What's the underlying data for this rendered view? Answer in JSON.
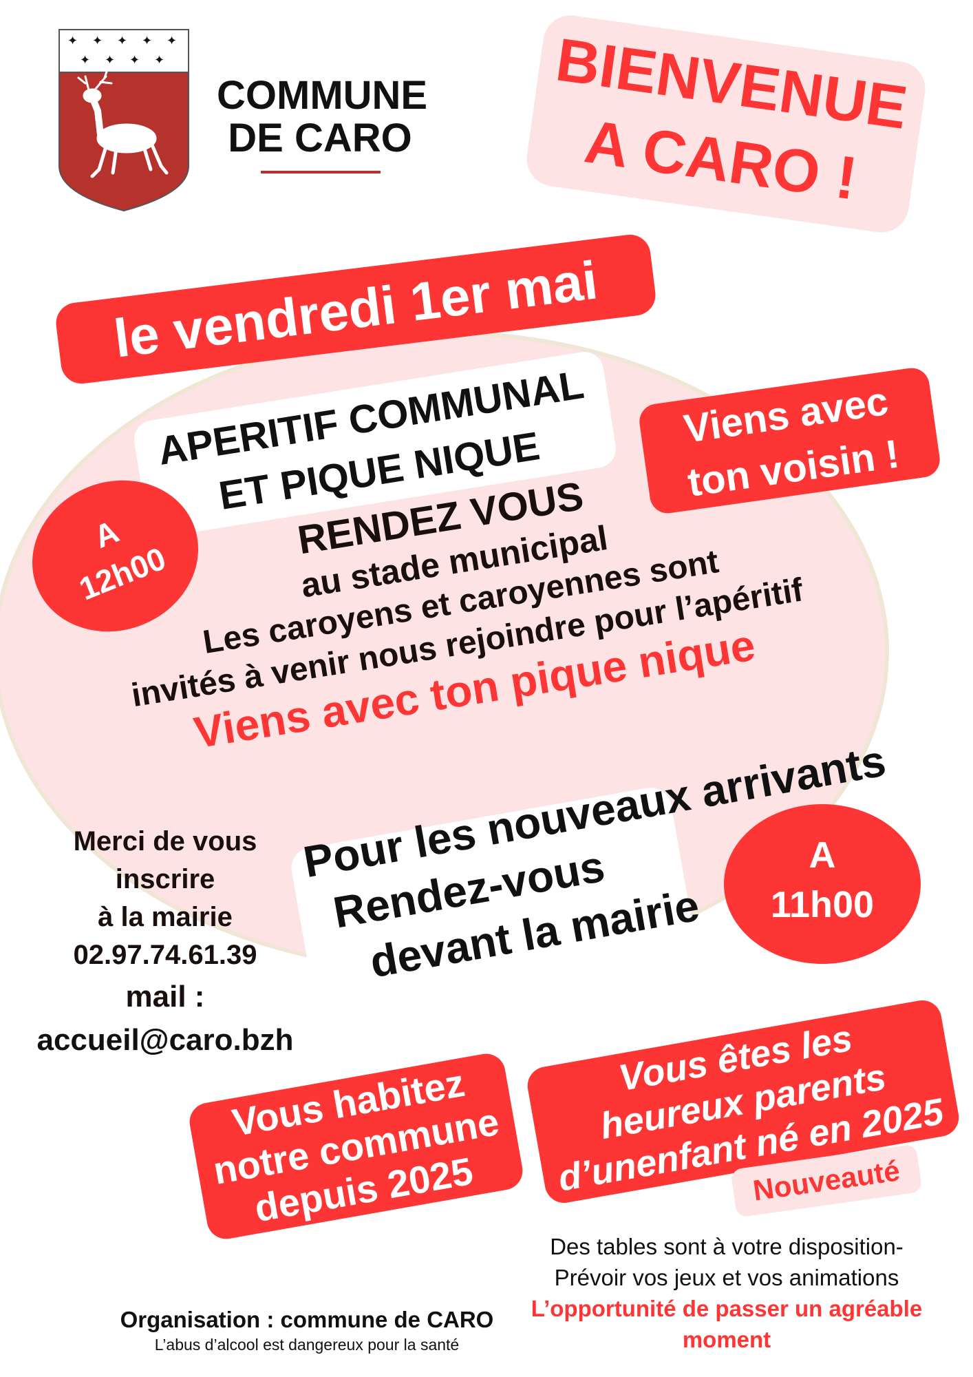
{
  "colors": {
    "accent": "#fd3535",
    "pink": "#fde3e3",
    "shield": "#b5332c",
    "text": "#1a0f0f"
  },
  "logo": {
    "alt_icon": "stag-coat-of-arms-icon",
    "line1": "COMMUNE",
    "line2": "DE CARO"
  },
  "welcome": {
    "line1": "BIENVENUE",
    "line2": "A CARO !"
  },
  "date": "le vendredi 1er mai",
  "event_title": {
    "line1": "APERITIF COMMUNAL",
    "line2": "ET PIQUE NIQUE"
  },
  "time_noon": {
    "line1": "A",
    "line2": "12h00"
  },
  "neighbor": {
    "line1": "Viens avec",
    "line2": "ton voisin  !"
  },
  "meeting": {
    "heading": "RENDEZ VOUS",
    "place": "au stade municipal",
    "body1": "Les caroyens et caroyennes sont",
    "body2": "invités à venir nous rejoindre pour l’apéritif",
    "picnic": "Viens avec  ton pique nique"
  },
  "newcomers": {
    "line1": "Pour les nouveaux arrivants",
    "line2": "Rendez-vous",
    "line3": "devant la mairie"
  },
  "time_eleven": {
    "line1": "A",
    "line2": "11h00"
  },
  "register": {
    "line1": "Merci de vous",
    "line2": "inscrire",
    "line3": "à la mairie",
    "phone": "02.97.74.61.39",
    "mail_label": "mail :",
    "email": "accueil@caro.bzh"
  },
  "residents": {
    "line1": "Vous habitez",
    "line2": "notre commune",
    "line3": "depuis 2025"
  },
  "parents": {
    "line1": "Vous êtes les",
    "line2": "heureux parents",
    "line3": "d’unenfant né en 2025",
    "badge": "Nouveauté"
  },
  "info": {
    "line1": "Des tables sont à votre disposition-",
    "line2": "Prévoir vos jeux et vos animations",
    "line3": "L’opportunité de passer un agréable",
    "line4": "moment"
  },
  "footer": {
    "organisation": "Organisation : commune de CARO",
    "warning": "L’abus d’alcool est dangereux pour la santé"
  }
}
